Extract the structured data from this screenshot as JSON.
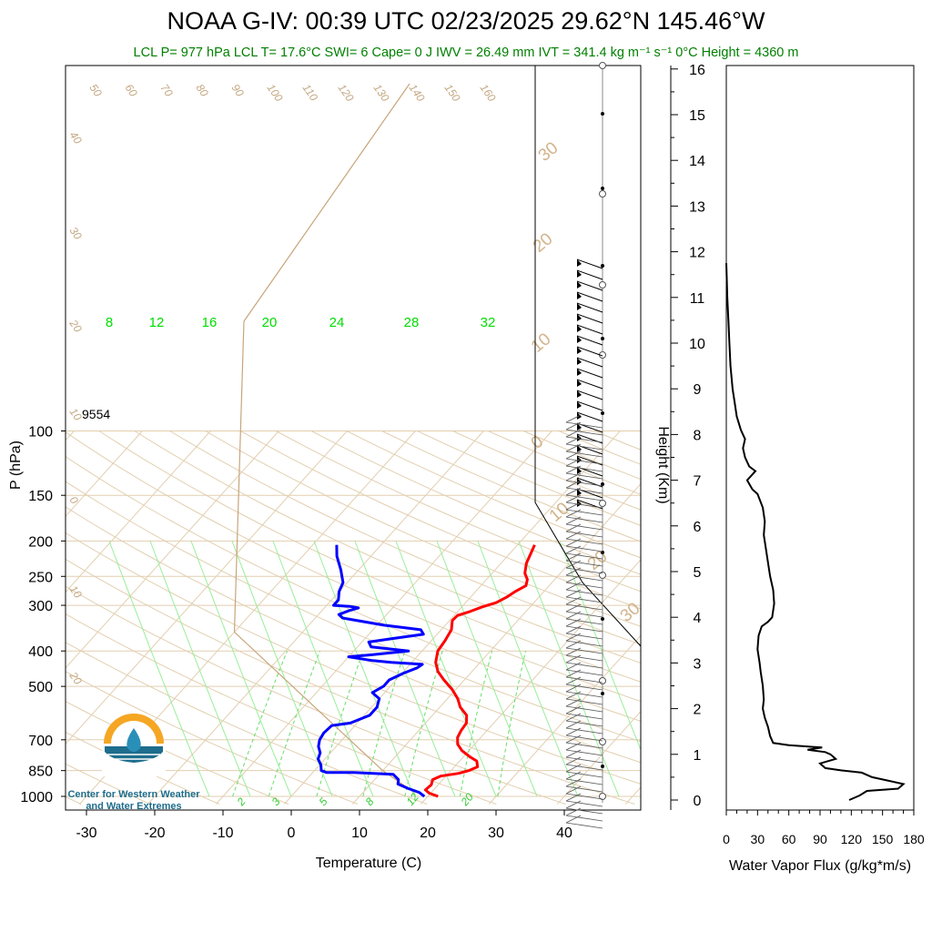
{
  "header": {
    "title": "NOAA G-IV: 00:39 UTC 02/23/2025  29.62°N 145.46°W",
    "subtitle": "LCL P= 977 hPa  LCL T= 17.6°C  SWI= 6  Cape= 0 J  IWV = 26.49 mm  IVT = 341.4 kg m⁻¹ s⁻¹  0°C Height = 4360 m"
  },
  "logo": {
    "line1": "Center for Western Weather",
    "line2": "and Water Extremes",
    "colors": {
      "sun": "#f5a623",
      "water": "#1e6d8c"
    }
  },
  "annotation": {
    "height_label": "9554"
  },
  "chart_data": [
    {
      "type": "line",
      "name": "skew-t",
      "xlabel": "Temperature (C)",
      "ylabel": "P (hPa)",
      "xlim": [
        -35,
        52
      ],
      "ylim": [
        1050,
        100
      ],
      "y_scale": "log",
      "x_ticks": [
        -30,
        -20,
        -10,
        0,
        10,
        20,
        30,
        40
      ],
      "y_ticks": [
        100,
        150,
        200,
        250,
        300,
        400,
        500,
        700,
        850,
        1000
      ],
      "isotherm_labels_top": [
        "50",
        "60",
        "70",
        "80",
        "90",
        "100",
        "110",
        "120",
        "130",
        "140",
        "150",
        "160"
      ],
      "isotherm_labels_left": [
        "40",
        "30",
        "20",
        "10",
        "0",
        "10",
        "20"
      ],
      "dry_adiabat_labels": [
        "30",
        "20",
        "10",
        "0",
        "10",
        "20",
        "30"
      ],
      "mixing_ratio_labels_top": [
        "8",
        "12",
        "16",
        "20",
        "24",
        "28",
        "32"
      ],
      "mixing_ratio_labels_bottom": [
        "2",
        "3",
        "5",
        "8",
        "12",
        "20"
      ],
      "series": [
        {
          "name": "Temperature",
          "color": "#ff0000",
          "points": [
            [
              21.5,
              1000
            ],
            [
              19.8,
              980
            ],
            [
              18.8,
              960
            ],
            [
              19.0,
              930
            ],
            [
              18.5,
              900
            ],
            [
              19.2,
              880
            ],
            [
              21.5,
              865
            ],
            [
              22.6,
              850
            ],
            [
              23.4,
              830
            ],
            [
              22.5,
              800
            ],
            [
              21.0,
              780
            ],
            [
              19.0,
              750
            ],
            [
              17.5,
              720
            ],
            [
              16.6,
              690
            ],
            [
              16.2,
              660
            ],
            [
              16.0,
              630
            ],
            [
              15.0,
              600
            ],
            [
              13.0,
              570
            ],
            [
              11.5,
              540
            ],
            [
              9.5,
              510
            ],
            [
              7.0,
              480
            ],
            [
              5.0,
              455
            ],
            [
              3.5,
              430
            ],
            [
              2.3,
              400
            ],
            [
              2.0,
              375
            ],
            [
              1.5,
              350
            ],
            [
              0.4,
              330
            ],
            [
              0.5,
              320
            ],
            [
              1.8,
              312
            ],
            [
              3.0,
              303
            ],
            [
              4.5,
              295
            ],
            [
              5.3,
              285
            ],
            [
              5.8,
              275
            ],
            [
              6.6,
              265
            ],
            [
              6.0,
              255
            ],
            [
              4.8,
              245
            ],
            [
              3.7,
              230
            ],
            [
              3.0,
              215
            ],
            [
              2.5,
              205
            ]
          ]
        },
        {
          "name": "Dewpoint",
          "color": "#0000ff",
          "points": [
            [
              19.5,
              1000
            ],
            [
              18.2,
              975
            ],
            [
              16.0,
              950
            ],
            [
              14.0,
              925
            ],
            [
              13.5,
              900
            ],
            [
              12.0,
              870
            ],
            [
              6.0,
              860
            ],
            [
              2.0,
              860
            ],
            [
              1.0,
              850
            ],
            [
              0.2,
              820
            ],
            [
              -1.0,
              790
            ],
            [
              -1.5,
              760
            ],
            [
              -2.6,
              730
            ],
            [
              -3.3,
              700
            ],
            [
              -3.6,
              670
            ],
            [
              -3.4,
              640
            ],
            [
              -1.0,
              630
            ],
            [
              0.8,
              600
            ],
            [
              0.8,
              570
            ],
            [
              0.0,
              540
            ],
            [
              -1.8,
              520
            ],
            [
              -1.0,
              500
            ],
            [
              -1.0,
              480
            ],
            [
              0.2,
              460
            ],
            [
              1.5,
              445
            ],
            [
              1.8,
              435
            ],
            [
              -3.0,
              430
            ],
            [
              -6.0,
              425
            ],
            [
              -10.0,
              415
            ],
            [
              -7.0,
              410
            ],
            [
              -2.0,
              400
            ],
            [
              -8.0,
              390
            ],
            [
              -9.0,
              378
            ],
            [
              -6.0,
              370
            ],
            [
              -2.0,
              360
            ],
            [
              -3.0,
              350
            ],
            [
              -9.0,
              340
            ],
            [
              -16.0,
              325
            ],
            [
              -17.0,
              318
            ],
            [
              -16.0,
              310
            ],
            [
              -15.0,
              305
            ],
            [
              -16.5,
              302
            ],
            [
              -19.0,
              300
            ],
            [
              -19.0,
              290
            ],
            [
              -20.0,
              275
            ],
            [
              -20.6,
              260
            ],
            [
              -22.6,
              240
            ],
            [
              -25.0,
              220
            ],
            [
              -26.5,
              205
            ]
          ]
        }
      ]
    },
    {
      "type": "line",
      "name": "water-vapor-flux",
      "xlabel": "Water Vapor Flux (g/kg*m/s)",
      "ylabel": "Height (Km)",
      "xlim": [
        0,
        180
      ],
      "ylim": [
        0,
        16
      ],
      "x_ticks": [
        0,
        30,
        60,
        90,
        120,
        150,
        180
      ],
      "y_ticks": [
        0,
        1,
        2,
        3,
        4,
        5,
        6,
        7,
        8,
        9,
        10,
        11,
        12,
        13,
        14,
        15,
        16
      ],
      "series": [
        {
          "name": "Water Vapor Flux",
          "color": "#000000",
          "points": [
            [
              118,
              0.0
            ],
            [
              128,
              0.1
            ],
            [
              135,
              0.2
            ],
            [
              165,
              0.25
            ],
            [
              170,
              0.35
            ],
            [
              150,
              0.45
            ],
            [
              140,
              0.5
            ],
            [
              130,
              0.6
            ],
            [
              110,
              0.65
            ],
            [
              95,
              0.7
            ],
            [
              90,
              0.8
            ],
            [
              105,
              0.9
            ],
            [
              100,
              1.0
            ],
            [
              95,
              1.05
            ],
            [
              78,
              1.1
            ],
            [
              92,
              1.15
            ],
            [
              60,
              1.2
            ],
            [
              45,
              1.25
            ],
            [
              42,
              1.4
            ],
            [
              40,
              1.6
            ],
            [
              37,
              1.8
            ],
            [
              35,
              2.0
            ],
            [
              36,
              2.2
            ],
            [
              35,
              2.5
            ],
            [
              33,
              2.8
            ],
            [
              32,
              3.0
            ],
            [
              30,
              3.3
            ],
            [
              31,
              3.6
            ],
            [
              34,
              3.8
            ],
            [
              40,
              3.9
            ],
            [
              44,
              4.0
            ],
            [
              46,
              4.3
            ],
            [
              45,
              4.6
            ],
            [
              42,
              4.9
            ],
            [
              40,
              5.2
            ],
            [
              38,
              5.5
            ],
            [
              36,
              5.8
            ],
            [
              37,
              6.1
            ],
            [
              35,
              6.4
            ],
            [
              30,
              6.7
            ],
            [
              25,
              6.8
            ],
            [
              20,
              7.0
            ],
            [
              24,
              7.1
            ],
            [
              28,
              7.2
            ],
            [
              22,
              7.3
            ],
            [
              18,
              7.5
            ],
            [
              16,
              7.7
            ],
            [
              18,
              7.9
            ],
            [
              14,
              8.1
            ],
            [
              10,
              8.4
            ],
            [
              8,
              8.7
            ],
            [
              6,
              9.0
            ],
            [
              4,
              9.5
            ],
            [
              3,
              10.0
            ],
            [
              2,
              10.5
            ],
            [
              1,
              11.0
            ],
            [
              0,
              11.75
            ]
          ]
        }
      ]
    }
  ]
}
